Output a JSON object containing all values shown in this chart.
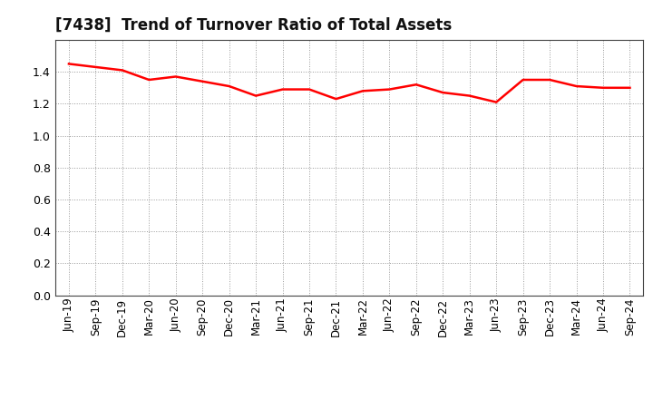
{
  "title": "[7438]  Trend of Turnover Ratio of Total Assets",
  "line_color": "#FF0000",
  "line_width": 1.8,
  "background_color": "#FFFFFF",
  "grid_color": "#999999",
  "ylim": [
    0.0,
    1.6
  ],
  "yticks": [
    0.0,
    0.2,
    0.4,
    0.6,
    0.8,
    1.0,
    1.2,
    1.4
  ],
  "labels": [
    "Jun-19",
    "Sep-19",
    "Dec-19",
    "Mar-20",
    "Jun-20",
    "Sep-20",
    "Dec-20",
    "Mar-21",
    "Jun-21",
    "Sep-21",
    "Dec-21",
    "Mar-22",
    "Jun-22",
    "Sep-22",
    "Dec-22",
    "Mar-23",
    "Jun-23",
    "Sep-23",
    "Dec-23",
    "Mar-24",
    "Jun-24",
    "Sep-24"
  ],
  "values": [
    1.45,
    1.43,
    1.41,
    1.35,
    1.37,
    1.34,
    1.31,
    1.25,
    1.29,
    1.29,
    1.23,
    1.28,
    1.29,
    1.32,
    1.27,
    1.25,
    1.21,
    1.35,
    1.35,
    1.31,
    1.3,
    1.3
  ],
  "title_fontsize": 12,
  "tick_fontsize": 8.5,
  "ytick_fontsize": 9
}
